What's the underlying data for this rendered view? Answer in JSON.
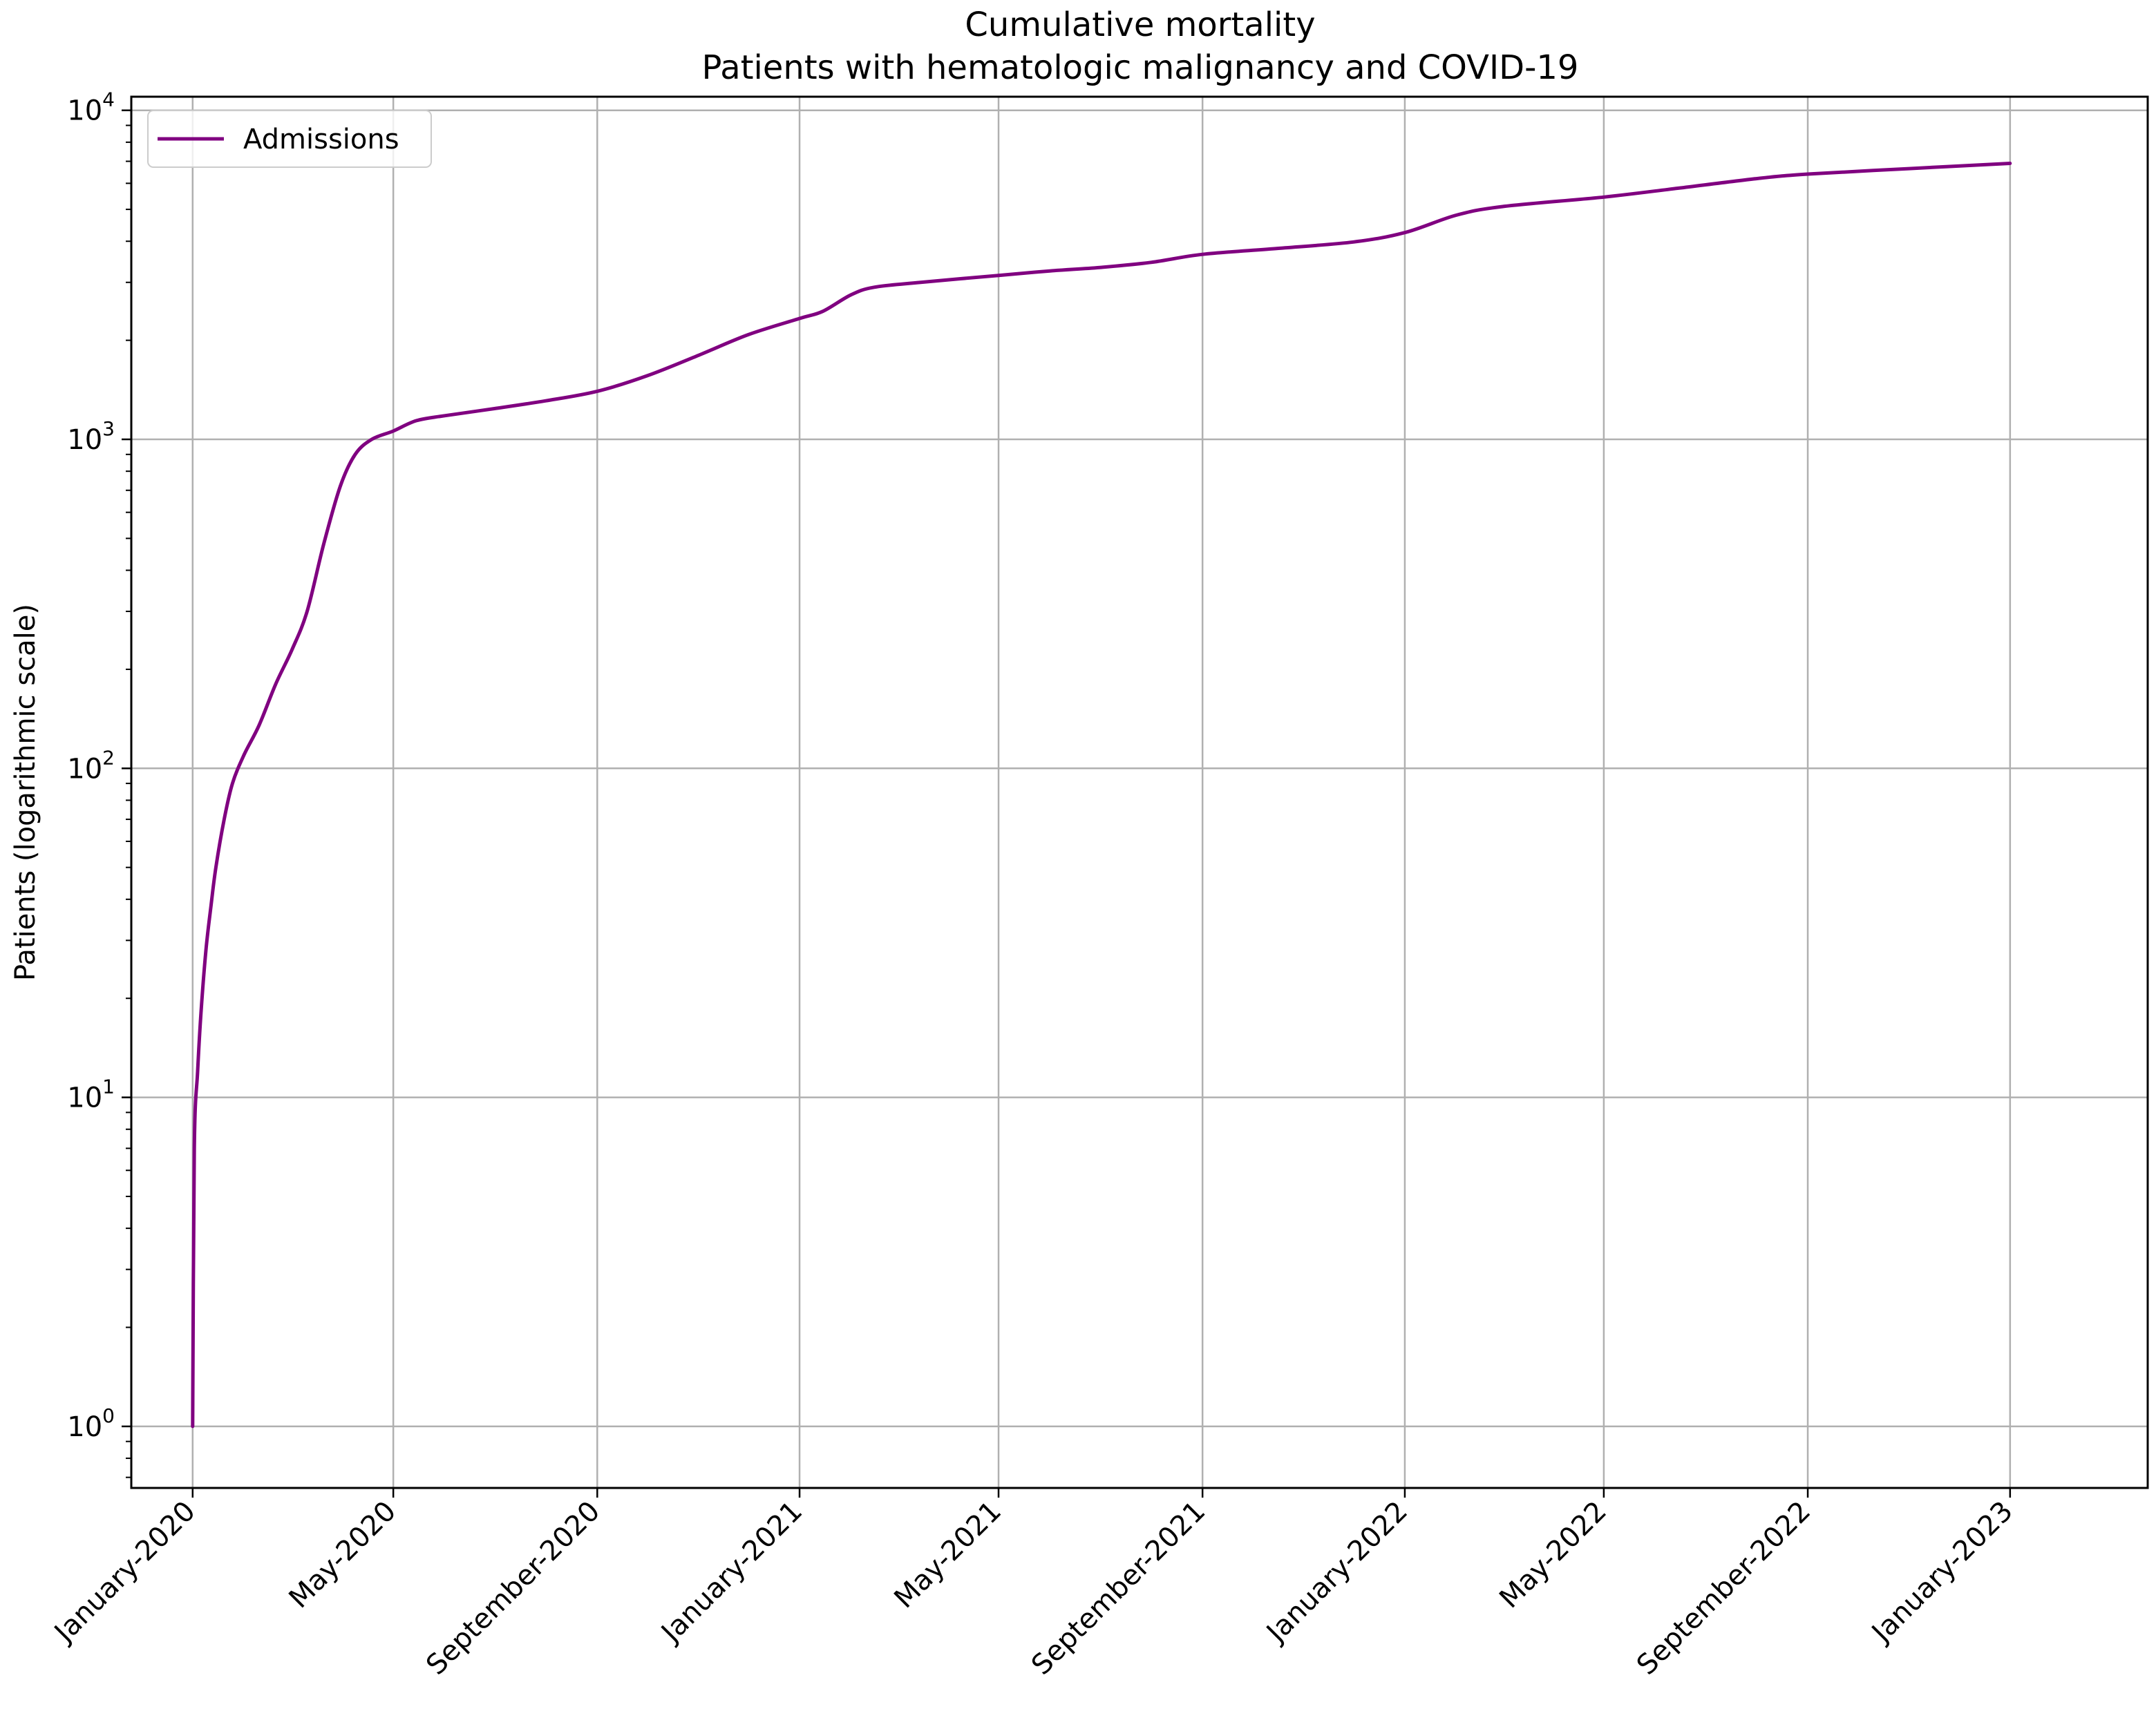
{
  "chart_data": {
    "type": "line",
    "title": "Cumulative mortality",
    "subtitle": "Patients with hematologic malignancy and COVID-19",
    "xlabel": "",
    "ylabel": "Patients (logarithmic scale)",
    "yscale": "log",
    "ylim": [
      0.65,
      11000
    ],
    "xlim": [
      "2019-11-25",
      "2023-03-25"
    ],
    "grid": true,
    "legend_position": "top-left",
    "y_ticks": [
      {
        "base": "10",
        "exp": "0",
        "value": 1
      },
      {
        "base": "10",
        "exp": "1",
        "value": 10
      },
      {
        "base": "10",
        "exp": "2",
        "value": 100
      },
      {
        "base": "10",
        "exp": "3",
        "value": 1000
      },
      {
        "base": "10",
        "exp": "4",
        "value": 10000
      }
    ],
    "x_ticks": [
      {
        "label": "January-2020",
        "date": "2020-01-01"
      },
      {
        "label": "May-2020",
        "date": "2020-05-01"
      },
      {
        "label": "September-2020",
        "date": "2020-09-01"
      },
      {
        "label": "January-2021",
        "date": "2021-01-01"
      },
      {
        "label": "May-2021",
        "date": "2021-05-01"
      },
      {
        "label": "September-2021",
        "date": "2021-09-01"
      },
      {
        "label": "January-2022",
        "date": "2022-01-01"
      },
      {
        "label": "May-2022",
        "date": "2022-05-01"
      },
      {
        "label": "September-2022",
        "date": "2022-09-01"
      },
      {
        "label": "January-2023",
        "date": "2023-01-01"
      }
    ],
    "series": [
      {
        "name": "Admissions",
        "color": "#800080",
        "points": [
          [
            "2020-01-01",
            1
          ],
          [
            "2020-01-02",
            7
          ],
          [
            "2020-01-04",
            12
          ],
          [
            "2020-01-06",
            18
          ],
          [
            "2020-01-09",
            28
          ],
          [
            "2020-01-12",
            38
          ],
          [
            "2020-01-15",
            50
          ],
          [
            "2020-01-20",
            70
          ],
          [
            "2020-01-25",
            90
          ],
          [
            "2020-02-01",
            110
          ],
          [
            "2020-02-10",
            135
          ],
          [
            "2020-02-20",
            180
          ],
          [
            "2020-03-01",
            230
          ],
          [
            "2020-03-10",
            300
          ],
          [
            "2020-03-20",
            480
          ],
          [
            "2020-03-30",
            720
          ],
          [
            "2020-04-08",
            900
          ],
          [
            "2020-04-18",
            1000
          ],
          [
            "2020-05-01",
            1060
          ],
          [
            "2020-05-15",
            1140
          ],
          [
            "2020-06-01",
            1180
          ],
          [
            "2020-07-01",
            1240
          ],
          [
            "2020-08-01",
            1310
          ],
          [
            "2020-09-01",
            1400
          ],
          [
            "2020-10-01",
            1560
          ],
          [
            "2020-11-01",
            1800
          ],
          [
            "2020-12-01",
            2080
          ],
          [
            "2021-01-01",
            2330
          ],
          [
            "2021-01-15",
            2450
          ],
          [
            "2021-02-01",
            2750
          ],
          [
            "2021-02-15",
            2900
          ],
          [
            "2021-03-15",
            3000
          ],
          [
            "2021-05-01",
            3150
          ],
          [
            "2021-06-01",
            3250
          ],
          [
            "2021-07-01",
            3330
          ],
          [
            "2021-08-01",
            3450
          ],
          [
            "2021-09-01",
            3650
          ],
          [
            "2021-10-15",
            3800
          ],
          [
            "2021-12-01",
            3980
          ],
          [
            "2022-01-01",
            4250
          ],
          [
            "2022-02-01",
            4800
          ],
          [
            "2022-03-01",
            5100
          ],
          [
            "2022-05-01",
            5450
          ],
          [
            "2022-06-15",
            5800
          ],
          [
            "2022-08-01",
            6200
          ],
          [
            "2022-09-01",
            6400
          ],
          [
            "2022-11-01",
            6650
          ],
          [
            "2023-01-01",
            6900
          ]
        ]
      }
    ]
  }
}
